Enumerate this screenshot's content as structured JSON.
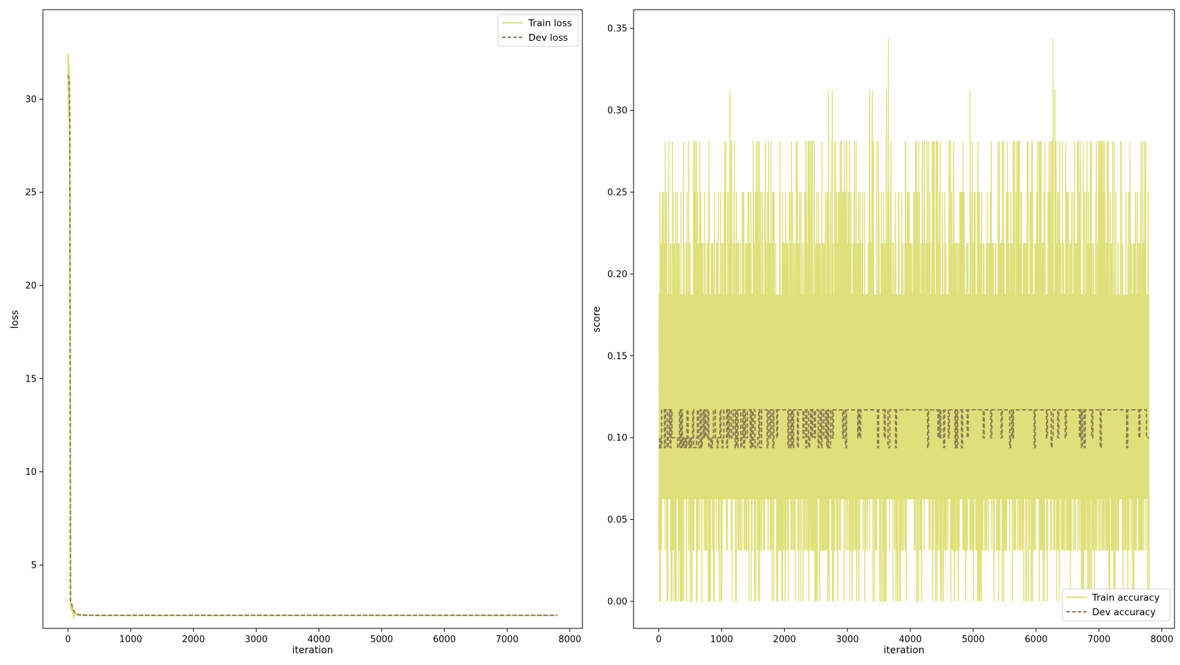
{
  "colors": {
    "train": "#e0e07a",
    "dev": "#8c7a55"
  },
  "chart_data": [
    {
      "type": "line",
      "xlabel": "iteration",
      "ylabel": "loss",
      "xlim": [
        -400,
        8200
      ],
      "ylim": [
        1.6,
        34.8
      ],
      "xticks": [
        0,
        1000,
        2000,
        3000,
        4000,
        5000,
        6000,
        7000,
        8000
      ],
      "yticks": [
        5,
        10,
        15,
        20,
        25,
        30
      ],
      "yticklabels": [
        "5",
        "10",
        "15",
        "20",
        "25",
        "30"
      ],
      "legend_position": "top-right",
      "series": [
        {
          "name": "Train loss",
          "style": "solid",
          "color": "#e0e07a",
          "points": [
            [
              0,
              32.4
            ],
            [
              5,
              32.4
            ],
            [
              8,
              29.0
            ],
            [
              12,
              31.5
            ],
            [
              15,
              29.5
            ],
            [
              18,
              31.8
            ],
            [
              22,
              29.2
            ],
            [
              30,
              26.5
            ],
            [
              40,
              2.8
            ],
            [
              50,
              2.6
            ],
            [
              60,
              2.9
            ],
            [
              70,
              2.4
            ],
            [
              80,
              2.5
            ],
            [
              90,
              2.2
            ],
            [
              120,
              2.4
            ],
            [
              150,
              2.3
            ],
            [
              200,
              2.35
            ],
            [
              400,
              2.3
            ],
            [
              800,
              2.3
            ],
            [
              7800,
              2.3
            ]
          ]
        },
        {
          "name": "Dev loss",
          "style": "dashed",
          "color": "#8c7a55",
          "points": [
            [
              0,
              31.3
            ],
            [
              10,
              31.1
            ],
            [
              20,
              30.9
            ],
            [
              30,
              29.0
            ],
            [
              40,
              3.1
            ],
            [
              60,
              2.9
            ],
            [
              80,
              2.6
            ],
            [
              120,
              2.4
            ],
            [
              200,
              2.3
            ],
            [
              400,
              2.3
            ],
            [
              7800,
              2.3
            ]
          ]
        }
      ]
    },
    {
      "type": "line",
      "xlabel": "iteration",
      "ylabel": "score",
      "xlim": [
        -400,
        8200
      ],
      "ylim": [
        -0.0165,
        0.3615
      ],
      "xticks": [
        0,
        1000,
        2000,
        3000,
        4000,
        5000,
        6000,
        7000,
        8000
      ],
      "yticks": [
        0.0,
        0.05,
        0.1,
        0.15,
        0.2,
        0.25,
        0.3,
        0.35
      ],
      "yticklabels": [
        "0.00",
        "0.05",
        "0.10",
        "0.15",
        "0.20",
        "0.25",
        "0.30",
        "0.35"
      ],
      "legend_position": "bottom-right",
      "series": [
        {
          "name": "Train accuracy",
          "style": "solid",
          "color": "#e0e07a",
          "x_start": 0,
          "x_end": 7800,
          "levels": [
            0.0,
            0.03125,
            0.0625,
            0.09375,
            0.125,
            0.15625,
            0.1875,
            0.21875,
            0.25,
            0.28125,
            0.3125,
            0.34375
          ],
          "core_range": [
            0.0625,
            0.1875
          ],
          "peaks": [
            [
              3650,
              0.34375
            ],
            [
              6270,
              0.34375
            ],
            [
              1130,
              0.3125
            ],
            [
              2700,
              0.3125
            ],
            [
              2760,
              0.3125
            ],
            [
              3350,
              0.3125
            ],
            [
              3400,
              0.3125
            ],
            [
              3620,
              0.3125
            ],
            [
              4950,
              0.3125
            ],
            [
              6300,
              0.3125
            ]
          ]
        },
        {
          "name": "Dev accuracy",
          "style": "dashed",
          "color": "#8c7a55",
          "x_start": 0,
          "x_end": 7800,
          "levels": [
            0.094,
            0.1,
            0.117
          ],
          "dominant": 0.117
        }
      ]
    }
  ]
}
